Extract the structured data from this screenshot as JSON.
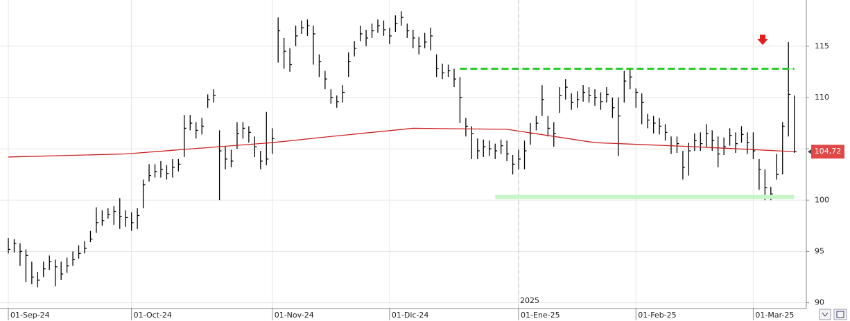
{
  "chart_data": {
    "type": "ohlc",
    "xlim": [
      -1.42,
      136.05
    ],
    "ylim": [
      89.5,
      119.5
    ],
    "xticks": [
      {
        "value": 0,
        "label": "01-Sep-24"
      },
      {
        "value": 21,
        "label": "01-Oct-24"
      },
      {
        "value": 45,
        "label": "01-Nov-24"
      },
      {
        "value": 65,
        "label": "01-Dic-24"
      },
      {
        "value": 87,
        "label": "01-Ene-25"
      },
      {
        "value": 107,
        "label": "01-Feb-25"
      },
      {
        "value": 127,
        "label": "01-Mar-25"
      }
    ],
    "yticks": [
      90,
      95,
      100,
      105,
      110,
      115
    ],
    "year_marker": {
      "value": 87,
      "label": "2025"
    },
    "grid": true,
    "bar_color": "#000000",
    "high": [
      96.3,
      96.2,
      95.8,
      95.2,
      94.0,
      93.0,
      94.0,
      94.6,
      94.2,
      94.0,
      94.4,
      95.0,
      95.6,
      96.0,
      97.0,
      99.3,
      99.0,
      99.2,
      99.4,
      100.2,
      99.0,
      98.8,
      99.2,
      102.0,
      103.5,
      103.5,
      103.8,
      103.4,
      104.0,
      104.0,
      108.3,
      108.3,
      107.6,
      108.0,
      110.3,
      110.8,
      106.8,
      105.2,
      104.9,
      107.6,
      107.6,
      107.2,
      106.2,
      104.8,
      108.6,
      107.0,
      117.8,
      115.8,
      114.8,
      117.0,
      117.5,
      117.6,
      117.0,
      114.2,
      112.6,
      110.8,
      110.2,
      111.2,
      114.4,
      115.5,
      117.0,
      116.6,
      117.2,
      117.6,
      117.5,
      116.8,
      118.0,
      118.4,
      117.2,
      116.6,
      115.9,
      116.3,
      116.8,
      114.2,
      113.3,
      113.2,
      112.8,
      112.0,
      108.0,
      107.2,
      106.0,
      105.9,
      105.8,
      105.5,
      105.9,
      105.8,
      104.4,
      104.9,
      105.8,
      107.5,
      108.2,
      111.2,
      108.2,
      107.6,
      111.0,
      111.8,
      110.4,
      110.6,
      111.2,
      111.0,
      110.8,
      110.5,
      111.0,
      110.0,
      110.0,
      112.6,
      112.8,
      110.9,
      110.4,
      108.4,
      108.2,
      108.0,
      107.4,
      106.2,
      106.2,
      104.8,
      105.6,
      106.5,
      106.6,
      107.4,
      106.8,
      106.2,
      106.1,
      107.0,
      106.6,
      107.2,
      106.6,
      106.6,
      104.0,
      103.0,
      101.3,
      104.5,
      107.6,
      115.4,
      110.2
    ],
    "low": [
      94.8,
      94.9,
      93.6,
      92.0,
      91.8,
      91.5,
      92.5,
      93.2,
      91.6,
      92.2,
      92.9,
      93.6,
      94.3,
      94.8,
      95.9,
      96.8,
      97.5,
      98.2,
      97.6,
      97.2,
      97.4,
      97.0,
      97.2,
      99.2,
      101.8,
      102.2,
      102.2,
      102.0,
      102.2,
      102.8,
      104.2,
      106.8,
      106.0,
      106.4,
      109.0,
      109.5,
      100.0,
      103.0,
      103.2,
      105.0,
      106.0,
      105.6,
      104.2,
      103.0,
      103.4,
      104.5,
      113.4,
      112.8,
      112.5,
      115.0,
      116.2,
      116.0,
      113.2,
      112.0,
      110.8,
      109.4,
      109.0,
      109.5,
      112.0,
      114.0,
      115.5,
      115.0,
      115.8,
      116.3,
      116.0,
      115.2,
      116.4,
      117.0,
      115.8,
      114.8,
      114.2,
      114.8,
      114.6,
      112.0,
      111.8,
      112.0,
      111.0,
      107.5,
      106.2,
      104.0,
      104.0,
      104.2,
      104.3,
      104.0,
      104.5,
      103.8,
      102.5,
      103.0,
      103.0,
      105.4,
      106.8,
      108.2,
      106.2,
      105.2,
      108.5,
      109.8,
      108.8,
      109.0,
      109.6,
      109.5,
      109.2,
      108.8,
      109.5,
      108.0,
      104.3,
      109.5,
      110.8,
      109.0,
      107.4,
      107.0,
      106.5,
      106.4,
      105.8,
      104.5,
      104.6,
      102.0,
      102.4,
      104.8,
      104.8,
      105.2,
      104.8,
      103.2,
      104.4,
      105.3,
      104.6,
      105.6,
      104.5,
      104.0,
      101.0,
      100.0,
      100.0,
      102.0,
      102.5,
      106.2,
      104.6
    ],
    "close": [
      95.2,
      95.8,
      95.0,
      94.6,
      92.5,
      92.2,
      93.3,
      94.0,
      93.5,
      92.8,
      93.6,
      94.2,
      94.8,
      95.3,
      96.2,
      97.8,
      98.0,
      98.6,
      98.9,
      98.4,
      98.3,
      97.8,
      98.5,
      101.5,
      102.4,
      102.8,
      103.0,
      102.6,
      103.2,
      103.5,
      107.0,
      107.5,
      106.8,
      107.2,
      109.8,
      110.2,
      104.8,
      104.0,
      103.8,
      106.5,
      107.0,
      106.6,
      105.2,
      103.8,
      104.0,
      106.0,
      116.5,
      114.5,
      113.2,
      116.0,
      116.8,
      117.0,
      116.2,
      113.5,
      111.8,
      110.0,
      109.6,
      110.5,
      113.5,
      114.8,
      116.2,
      115.8,
      116.5,
      117.0,
      116.6,
      116.0,
      117.2,
      117.8,
      116.5,
      115.8,
      115.0,
      115.4,
      116.0,
      112.8,
      112.4,
      112.6,
      111.8,
      110.0,
      107.2,
      106.5,
      104.8,
      105.2,
      105.0,
      104.8,
      105.3,
      104.5,
      103.5,
      104.0,
      104.8,
      106.5,
      107.5,
      109.8,
      107.0,
      106.5,
      110.2,
      111.0,
      109.5,
      109.8,
      110.5,
      110.2,
      110.0,
      109.6,
      110.3,
      109.0,
      108.2,
      111.6,
      112.0,
      110.5,
      109.5,
      107.8,
      107.5,
      107.2,
      106.6,
      105.3,
      105.5,
      103.2,
      104.8,
      105.8,
      105.5,
      106.5,
      105.8,
      104.5,
      105.2,
      106.3,
      105.5,
      106.4,
      105.6,
      104.8,
      103.0,
      101.2,
      100.6,
      102.5,
      107.2,
      110.3,
      104.72
    ],
    "moving_average": {
      "color": "#cc2222",
      "x": [
        0,
        20,
        45,
        55,
        69,
        85,
        100,
        117,
        134
      ],
      "values": [
        104.2,
        104.5,
        105.6,
        106.2,
        107.0,
        106.9,
        105.6,
        105.2,
        104.72
      ]
    },
    "levels": [
      {
        "value": 112.8,
        "x": [
          77,
          134
        ],
        "color": "#22cc22",
        "style": "dashed"
      },
      {
        "value": 100.3,
        "x": [
          83,
          134
        ],
        "color": "#c8f5c8",
        "style": "solid"
      }
    ],
    "last_price": {
      "value": 104.72,
      "label": "104,72",
      "color": "#e04848"
    }
  }
}
